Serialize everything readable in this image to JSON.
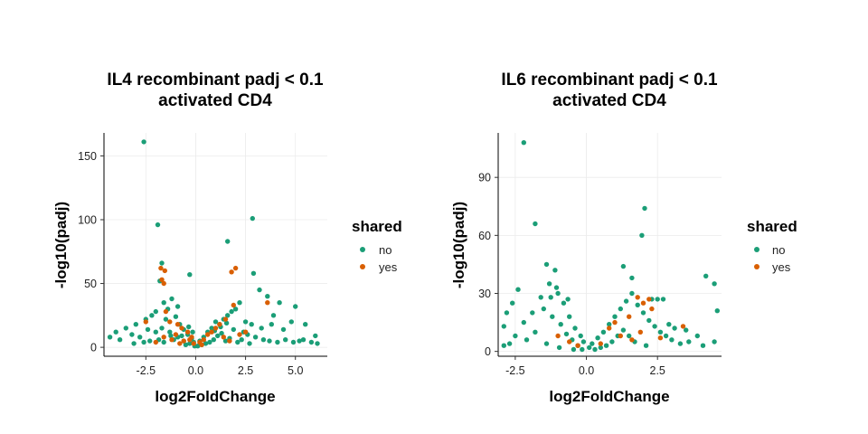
{
  "chart_data": [
    {
      "type": "scatter",
      "title_line1": "IL4 recombinant padj < 0.1",
      "title_line2": "activated CD4",
      "xlabel": "log2FoldChange",
      "ylabel": "-log10(padj)",
      "xlim": [
        -4.6,
        6.6
      ],
      "ylim": [
        -7,
        168
      ],
      "xticks": [
        -2.5,
        0.0,
        2.5,
        5.0
      ],
      "xtick_labels": [
        "-2.5",
        "0.0",
        "2.5",
        "5.0"
      ],
      "yticks": [
        0,
        50,
        100,
        150
      ],
      "ytick_labels": [
        "0",
        "50",
        "100",
        "150"
      ],
      "grid": true,
      "legend": {
        "title": "shared",
        "position": "right",
        "entries": [
          "no",
          "yes"
        ]
      },
      "series": [
        {
          "name": "no",
          "color": "#1b9e77",
          "points": [
            [
              -2.6,
              161
            ],
            [
              -1.9,
              96
            ],
            [
              2.85,
              101
            ],
            [
              1.6,
              83
            ],
            [
              -1.7,
              66
            ],
            [
              -0.3,
              57
            ],
            [
              2.9,
              58
            ],
            [
              3.2,
              45
            ],
            [
              3.6,
              40
            ],
            [
              4.2,
              35
            ],
            [
              5.0,
              32
            ],
            [
              3.9,
              25
            ],
            [
              4.8,
              20
            ],
            [
              5.5,
              18
            ],
            [
              -1.8,
              52
            ],
            [
              -1.6,
              35
            ],
            [
              -1.2,
              38
            ],
            [
              -0.9,
              32
            ],
            [
              -1.4,
              30
            ],
            [
              -2.0,
              28
            ],
            [
              -2.5,
              22
            ],
            [
              -3.0,
              18
            ],
            [
              -3.5,
              15
            ],
            [
              -4.0,
              12
            ],
            [
              -4.3,
              8
            ],
            [
              -3.8,
              6
            ],
            [
              -3.2,
              10
            ],
            [
              -2.8,
              8
            ],
            [
              -2.2,
              25
            ],
            [
              -2.0,
              12
            ],
            [
              -1.5,
              22
            ],
            [
              -1.0,
              24
            ],
            [
              -0.8,
              18
            ],
            [
              -0.6,
              14
            ],
            [
              -0.4,
              10
            ],
            [
              -0.2,
              7
            ],
            [
              -0.1,
              4
            ],
            [
              -0.3,
              3
            ],
            [
              -0.6,
              5
            ],
            [
              -0.9,
              8
            ],
            [
              -1.3,
              12
            ],
            [
              -1.7,
              15
            ],
            [
              -1.1,
              6
            ],
            [
              -1.6,
              4
            ],
            [
              -2.3,
              5
            ],
            [
              -2.6,
              4
            ],
            [
              -3.1,
              3
            ],
            [
              -0.5,
              2
            ],
            [
              -0.7,
              9
            ],
            [
              -0.15,
              12
            ],
            [
              0.2,
              5
            ],
            [
              0.4,
              8
            ],
            [
              0.6,
              12
            ],
            [
              0.8,
              15
            ],
            [
              1.0,
              20
            ],
            [
              1.2,
              18
            ],
            [
              1.4,
              22
            ],
            [
              1.6,
              25
            ],
            [
              1.8,
              28
            ],
            [
              2.0,
              30
            ],
            [
              2.2,
              35
            ],
            [
              1.9,
              14
            ],
            [
              2.4,
              12
            ],
            [
              2.6,
              10
            ],
            [
              3.0,
              8
            ],
            [
              3.4,
              6
            ],
            [
              3.7,
              5
            ],
            [
              4.1,
              4
            ],
            [
              4.5,
              6
            ],
            [
              5.2,
              5
            ],
            [
              5.8,
              4
            ],
            [
              6.0,
              9
            ],
            [
              6.1,
              3
            ],
            [
              2.8,
              18
            ],
            [
              3.3,
              15
            ],
            [
              0.3,
              2
            ],
            [
              0.5,
              3
            ],
            [
              0.7,
              4
            ],
            [
              0.9,
              6
            ],
            [
              1.1,
              9
            ],
            [
              1.3,
              11
            ],
            [
              1.5,
              5
            ],
            [
              1.7,
              7
            ],
            [
              2.1,
              4
            ],
            [
              2.3,
              6
            ],
            [
              2.7,
              3
            ],
            [
              0.1,
              1
            ],
            [
              -0.05,
              1
            ],
            [
              1.25,
              16
            ],
            [
              0.95,
              13
            ],
            [
              1.55,
              19
            ],
            [
              -1.25,
              9
            ],
            [
              -1.85,
              6
            ],
            [
              -2.4,
              14
            ],
            [
              -0.35,
              16
            ],
            [
              4.4,
              14
            ],
            [
              3.8,
              18
            ],
            [
              5.4,
              6
            ],
            [
              4.9,
              4
            ],
            [
              2.5,
              20
            ]
          ]
        },
        {
          "name": "yes",
          "color": "#d95f02",
          "points": [
            [
              -1.75,
              62
            ],
            [
              -1.55,
              60
            ],
            [
              -1.7,
              53
            ],
            [
              -1.6,
              50
            ],
            [
              -1.5,
              28
            ],
            [
              -1.3,
              20
            ],
            [
              -0.9,
              18
            ],
            [
              -0.7,
              15
            ],
            [
              -0.4,
              12
            ],
            [
              -0.2,
              8
            ],
            [
              -1.0,
              10
            ],
            [
              -1.2,
              6
            ],
            [
              -1.6,
              8
            ],
            [
              -2.0,
              4
            ],
            [
              -2.5,
              20
            ],
            [
              -0.6,
              5
            ],
            [
              -0.8,
              3
            ],
            [
              2.0,
              62
            ],
            [
              1.8,
              59
            ],
            [
              1.9,
              33
            ],
            [
              1.5,
              22
            ],
            [
              1.2,
              18
            ],
            [
              1.0,
              15
            ],
            [
              0.8,
              12
            ],
            [
              0.6,
              10
            ],
            [
              0.4,
              6
            ],
            [
              0.2,
              4
            ],
            [
              1.4,
              8
            ],
            [
              1.7,
              5
            ],
            [
              2.2,
              10
            ],
            [
              2.5,
              12
            ],
            [
              3.6,
              35
            ],
            [
              -0.1,
              3
            ],
            [
              0.3,
              2
            ],
            [
              -0.3,
              6
            ]
          ]
        }
      ]
    },
    {
      "type": "scatter",
      "title_line1": "IL6 recombinant padj < 0.1",
      "title_line2": "activated CD4",
      "xlabel": "log2FoldChange",
      "ylabel": "-log10(padj)",
      "xlim": [
        -3.1,
        4.75
      ],
      "ylim": [
        -2.5,
        113
      ],
      "xticks": [
        -2.5,
        0.0,
        2.5
      ],
      "xtick_labels": [
        "-2.5",
        "0.0",
        "2.5"
      ],
      "yticks": [
        0,
        30,
        60,
        90
      ],
      "ytick_labels": [
        "0",
        "30",
        "60",
        "90"
      ],
      "grid": true,
      "legend": {
        "title": "shared",
        "position": "right",
        "entries": [
          "no",
          "yes"
        ]
      },
      "series": [
        {
          "name": "no",
          "color": "#1b9e77",
          "points": [
            [
              -2.2,
              108
            ],
            [
              -1.8,
              66
            ],
            [
              2.05,
              74
            ],
            [
              1.95,
              60
            ],
            [
              -1.4,
              45
            ],
            [
              -1.1,
              42
            ],
            [
              1.3,
              44
            ],
            [
              1.6,
              38
            ],
            [
              4.2,
              39
            ],
            [
              4.5,
              35
            ],
            [
              4.6,
              21
            ],
            [
              4.5,
              5
            ],
            [
              3.1,
              12
            ],
            [
              2.7,
              27
            ],
            [
              2.5,
              27
            ],
            [
              -2.4,
              32
            ],
            [
              -2.6,
              25
            ],
            [
              -2.8,
              20
            ],
            [
              -2.9,
              13
            ],
            [
              -2.5,
              8
            ],
            [
              -2.2,
              15
            ],
            [
              -1.9,
              20
            ],
            [
              -1.6,
              28
            ],
            [
              -1.3,
              35
            ],
            [
              -1.0,
              30
            ],
            [
              -0.8,
              25
            ],
            [
              -0.6,
              18
            ],
            [
              -0.4,
              12
            ],
            [
              -0.2,
              8
            ],
            [
              -0.1,
              5
            ],
            [
              -0.3,
              3
            ],
            [
              -0.5,
              6
            ],
            [
              -0.7,
              9
            ],
            [
              -0.9,
              14
            ],
            [
              -1.2,
              18
            ],
            [
              -1.5,
              22
            ],
            [
              -1.8,
              10
            ],
            [
              -2.1,
              6
            ],
            [
              -2.7,
              4
            ],
            [
              -2.9,
              3
            ],
            [
              -1.4,
              4
            ],
            [
              -0.95,
              2
            ],
            [
              -0.45,
              1
            ],
            [
              0.1,
              2
            ],
            [
              0.2,
              4
            ],
            [
              0.4,
              7
            ],
            [
              0.6,
              10
            ],
            [
              0.8,
              14
            ],
            [
              1.0,
              18
            ],
            [
              1.2,
              22
            ],
            [
              1.4,
              26
            ],
            [
              1.6,
              30
            ],
            [
              1.8,
              24
            ],
            [
              2.0,
              20
            ],
            [
              2.2,
              16
            ],
            [
              2.4,
              13
            ],
            [
              2.6,
              10
            ],
            [
              2.8,
              8
            ],
            [
              3.0,
              6
            ],
            [
              3.3,
              4
            ],
            [
              3.6,
              5
            ],
            [
              3.9,
              8
            ],
            [
              4.1,
              3
            ],
            [
              1.5,
              8
            ],
            [
              1.7,
              5
            ],
            [
              2.1,
              3
            ],
            [
              0.5,
              2
            ],
            [
              0.7,
              3
            ],
            [
              0.9,
              5
            ],
            [
              1.1,
              8
            ],
            [
              1.3,
              11
            ],
            [
              -1.25,
              28
            ],
            [
              -1.05,
              33
            ],
            [
              -0.65,
              27
            ],
            [
              2.3,
              27
            ],
            [
              2.9,
              14
            ],
            [
              3.5,
              11
            ],
            [
              0.3,
              1
            ],
            [
              -0.15,
              1
            ]
          ]
        },
        {
          "name": "yes",
          "color": "#d95f02",
          "points": [
            [
              1.8,
              28
            ],
            [
              2.2,
              27
            ],
            [
              2.3,
              22
            ],
            [
              2.0,
              25
            ],
            [
              1.9,
              10
            ],
            [
              1.5,
              18
            ],
            [
              1.0,
              15
            ],
            [
              0.8,
              12
            ],
            [
              1.2,
              8
            ],
            [
              1.6,
              6
            ],
            [
              3.4,
              13
            ],
            [
              -1.0,
              8
            ],
            [
              -0.6,
              5
            ],
            [
              -0.3,
              3
            ],
            [
              0.5,
              4
            ],
            [
              2.6,
              7
            ]
          ]
        }
      ]
    }
  ]
}
